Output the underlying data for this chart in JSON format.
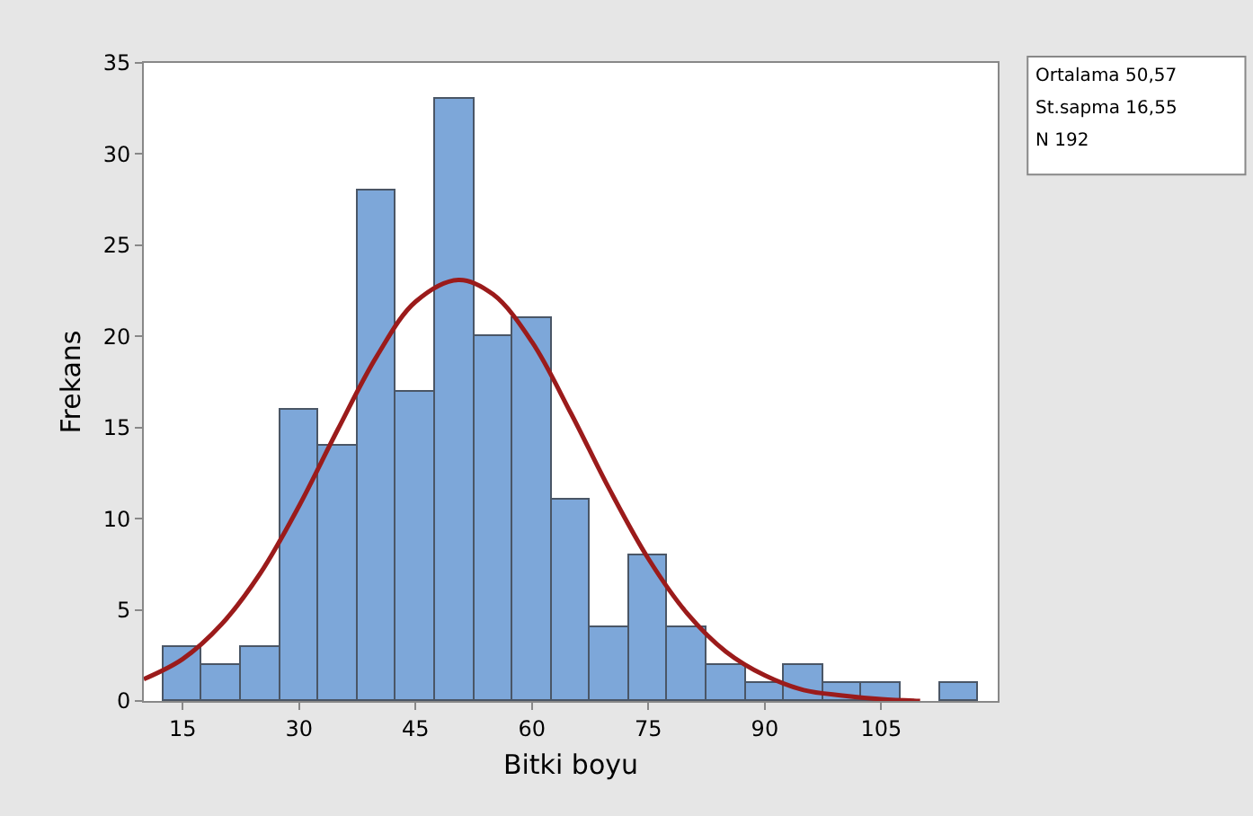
{
  "chart_data": {
    "type": "histogram",
    "xlabel": "Bitki boyu",
    "ylabel": "Frekans",
    "bins": [
      12.5,
      17.5,
      22.5,
      27.5,
      32.5,
      37.5,
      42.5,
      47.5,
      52.5,
      57.5,
      62.5,
      67.5,
      72.5,
      77.5,
      82.5,
      87.5,
      92.5,
      97.5,
      102.5,
      107.5,
      112.5,
      117.5
    ],
    "values": [
      3,
      2,
      3,
      16,
      14,
      28,
      17,
      33,
      20,
      21,
      11,
      4,
      8,
      4,
      2,
      1,
      2,
      1,
      1,
      0,
      1
    ],
    "color": "#7da7d9",
    "series": [
      {
        "type": "line",
        "color": "#9b1b1b",
        "x": [
          10,
          15,
          20,
          25,
          30,
          35,
          40,
          45,
          50.57,
          55,
          60,
          65,
          70,
          75,
          80,
          85,
          90,
          95,
          100,
          105,
          110
        ],
        "values": [
          1.2,
          2.3,
          4.2,
          7.0,
          10.7,
          14.9,
          18.9,
          21.9,
          23.1,
          22.3,
          19.7,
          15.8,
          11.6,
          7.8,
          4.8,
          2.7,
          1.4,
          0.6,
          0.3,
          0.1,
          0.0
        ]
      }
    ],
    "xlim": [
      10,
      120
    ],
    "xticks": [
      15,
      30,
      45,
      60,
      75,
      90,
      105
    ],
    "ylim": [
      0,
      35
    ],
    "yticks": [
      0,
      5,
      10,
      15,
      20,
      25,
      30,
      35
    ],
    "grid": false,
    "legend": false,
    "annotations": [
      "Ortalama 50,57",
      "St.sapma 16,55",
      "N 192"
    ]
  }
}
